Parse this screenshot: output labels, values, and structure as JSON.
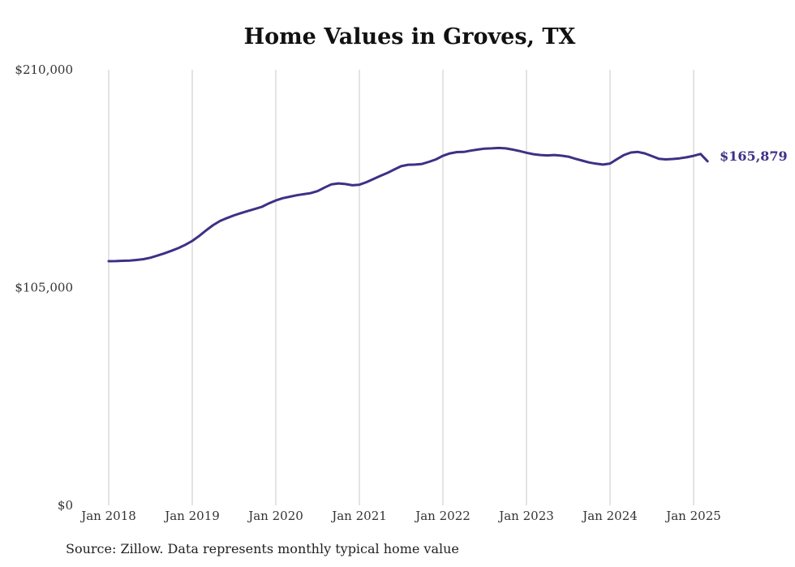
{
  "chart_data": {
    "type": "line",
    "title": "Home Values in Groves, TX",
    "xlabel": "",
    "ylabel": "",
    "ylim": [
      0,
      210000
    ],
    "y_ticks": [
      {
        "value": 0,
        "label": "$0"
      },
      {
        "value": 105000,
        "label": "$105,000"
      },
      {
        "value": 210000,
        "label": "$210,000"
      }
    ],
    "x_ticks": [
      {
        "value": 2018,
        "label": "Jan 2018"
      },
      {
        "value": 2019,
        "label": "Jan 2019"
      },
      {
        "value": 2020,
        "label": "Jan 2020"
      },
      {
        "value": 2021,
        "label": "Jan 2021"
      },
      {
        "value": 2022,
        "label": "Jan 2022"
      },
      {
        "value": 2023,
        "label": "Jan 2023"
      },
      {
        "value": 2024,
        "label": "Jan 2024"
      },
      {
        "value": 2025,
        "label": "Jan 2025"
      }
    ],
    "grid": {
      "vertical": true,
      "horizontal": false
    },
    "line_color": "#3d3185",
    "end_label": "$165,879",
    "series": [
      {
        "name": "",
        "x": [
          "2018-01",
          "2018-02",
          "2018-03",
          "2018-04",
          "2018-05",
          "2018-06",
          "2018-07",
          "2018-08",
          "2018-09",
          "2018-10",
          "2018-11",
          "2018-12",
          "2019-01",
          "2019-02",
          "2019-03",
          "2019-04",
          "2019-05",
          "2019-06",
          "2019-07",
          "2019-08",
          "2019-09",
          "2019-10",
          "2019-11",
          "2019-12",
          "2020-01",
          "2020-02",
          "2020-03",
          "2020-04",
          "2020-05",
          "2020-06",
          "2020-07",
          "2020-08",
          "2020-09",
          "2020-10",
          "2020-11",
          "2020-12",
          "2021-01",
          "2021-02",
          "2021-03",
          "2021-04",
          "2021-05",
          "2021-06",
          "2021-07",
          "2021-08",
          "2021-09",
          "2021-10",
          "2021-11",
          "2021-12",
          "2022-01",
          "2022-02",
          "2022-03",
          "2022-04",
          "2022-05",
          "2022-06",
          "2022-07",
          "2022-08",
          "2022-09",
          "2022-10",
          "2022-11",
          "2022-12",
          "2023-01",
          "2023-02",
          "2023-03",
          "2023-04",
          "2023-05",
          "2023-06",
          "2023-07",
          "2023-08",
          "2023-09",
          "2023-10",
          "2023-11",
          "2023-12",
          "2024-01",
          "2024-02",
          "2024-03",
          "2024-04",
          "2024-05",
          "2024-06",
          "2024-07",
          "2024-08",
          "2024-09",
          "2024-10",
          "2024-11",
          "2024-12",
          "2025-01",
          "2025-02",
          "2025-03"
        ],
        "y": [
          117700,
          117750,
          117900,
          118000,
          118300,
          118700,
          119400,
          120400,
          121500,
          122700,
          124000,
          125600,
          127500,
          129900,
          132600,
          135100,
          137100,
          138500,
          139800,
          140900,
          141900,
          142900,
          143900,
          145600,
          147000,
          148100,
          148800,
          149500,
          150000,
          150500,
          151500,
          153200,
          154800,
          155200,
          154900,
          154300,
          154600,
          155800,
          157300,
          158800,
          160200,
          161900,
          163500,
          164200,
          164300,
          164600,
          165600,
          166800,
          168500,
          169700,
          170300,
          170400,
          171000,
          171500,
          172000,
          172100,
          172300,
          172100,
          171500,
          170800,
          170000,
          169300,
          168900,
          168700,
          168900,
          168600,
          168100,
          167100,
          166200,
          165300,
          164700,
          164300,
          164800,
          166900,
          168900,
          170100,
          170400,
          169700,
          168400,
          167100,
          166800,
          167000,
          167300,
          167800,
          168500,
          169400,
          165879
        ]
      }
    ]
  },
  "footer": {
    "source": "Source: Zillow. Data represents monthly typical home value"
  }
}
